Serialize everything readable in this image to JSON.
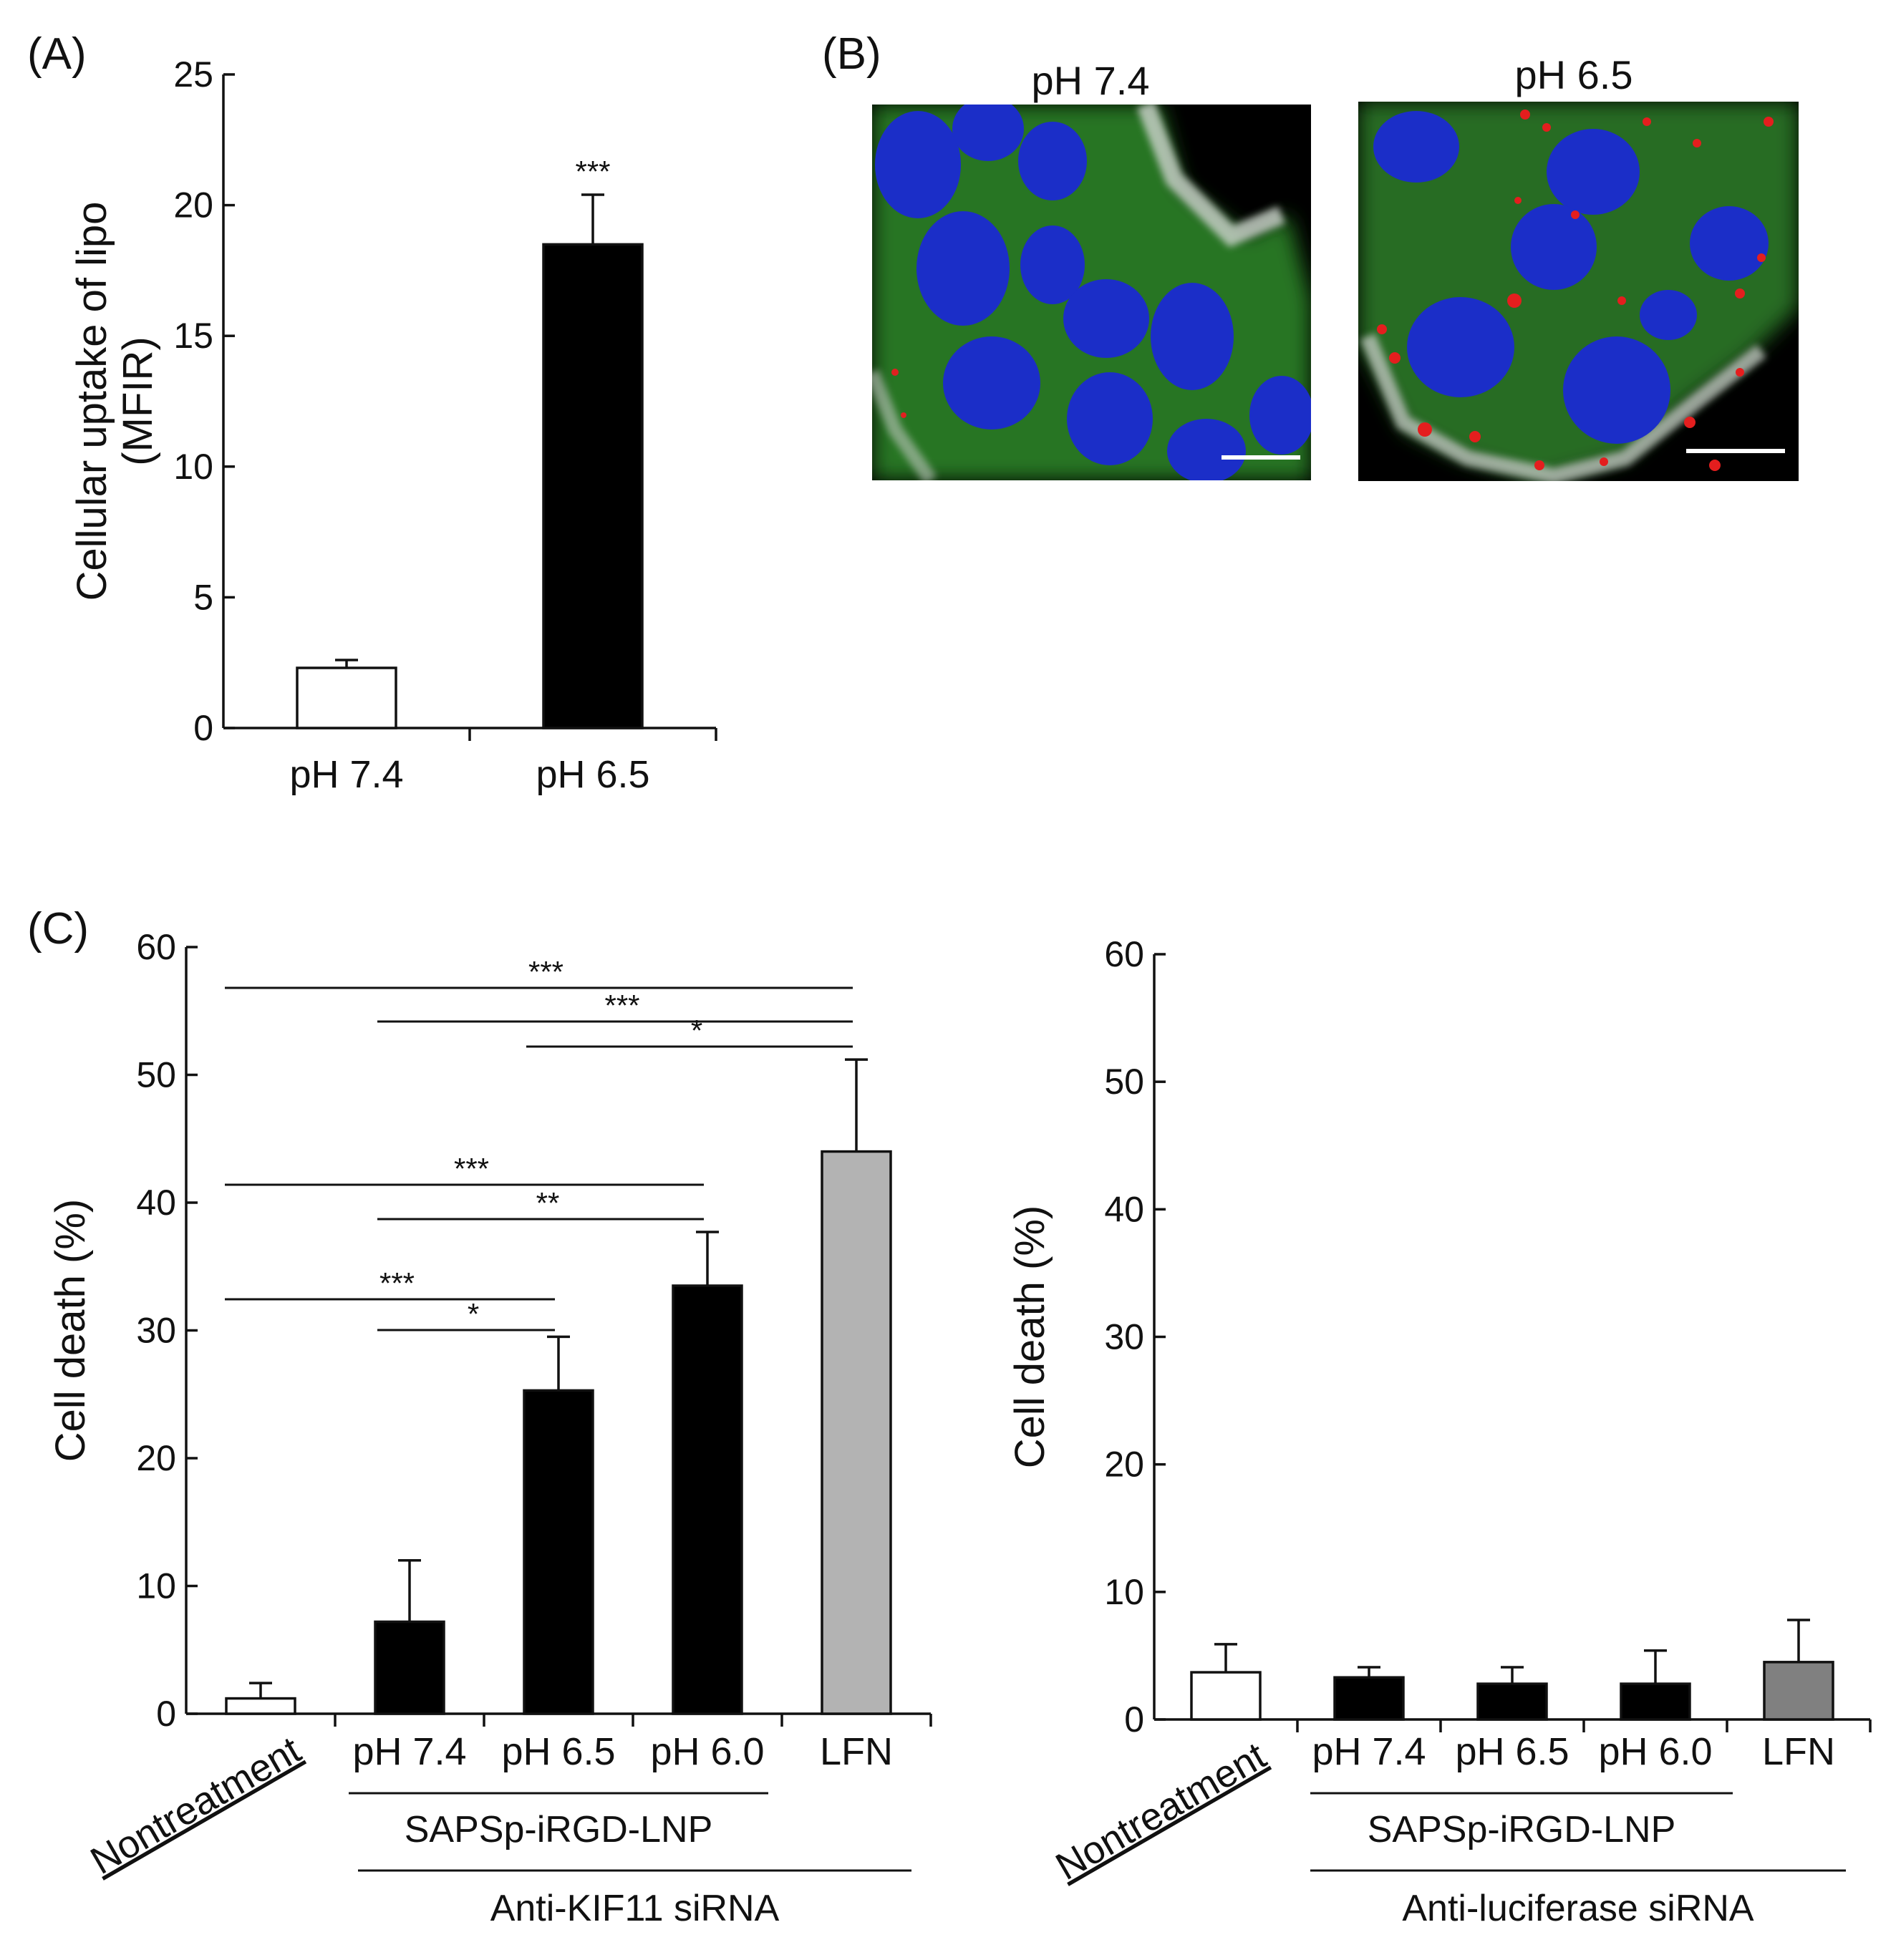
{
  "panels": {
    "a": "(A)",
    "b": "(B)",
    "c": "(C)"
  },
  "micrographs": {
    "left_title": "pH 7.4",
    "right_title": "pH 6.5"
  },
  "chart_data": [
    {
      "id": "A",
      "type": "bar",
      "ylabel": "Cellular uptake of lipo (MFIR)",
      "ylim": [
        0,
        25
      ],
      "yticks": [
        0,
        5,
        10,
        15,
        20,
        25
      ],
      "categories": [
        "pH 7.4",
        "pH 6.5"
      ],
      "values": [
        2.3,
        18.5
      ],
      "errors": [
        0.3,
        1.9
      ],
      "colors": [
        "#ffffff",
        "#000000"
      ],
      "significance": [
        {
          "label": "***",
          "bar": 1
        }
      ]
    },
    {
      "id": "C-left",
      "type": "bar",
      "ylabel": "Cell death (%)",
      "ylim": [
        0,
        60
      ],
      "yticks": [
        0,
        10,
        20,
        30,
        40,
        50,
        60
      ],
      "categories": [
        "Nontreatment",
        "pH 7.4",
        "pH 6.5",
        "pH 6.0",
        "LFN"
      ],
      "values": [
        1.2,
        7.2,
        25.3,
        33.5,
        44.0
      ],
      "errors": [
        1.2,
        4.8,
        4.2,
        4.2,
        7.2
      ],
      "colors": [
        "#ffffff",
        "#000000",
        "#000000",
        "#000000",
        "#b3b3b3"
      ],
      "group_label": "SAPSp-iRGD-LNP",
      "treatment_label": "Anti-KIF11 siRNA",
      "comparisons": [
        {
          "from": 0,
          "to": 4,
          "label": "***"
        },
        {
          "from": 1,
          "to": 4,
          "label": "***"
        },
        {
          "from": 2,
          "to": 4,
          "label": "*"
        },
        {
          "from": 0,
          "to": 3,
          "label": "***"
        },
        {
          "from": 1,
          "to": 3,
          "label": "**"
        },
        {
          "from": 0,
          "to": 2,
          "label": "***"
        },
        {
          "from": 1,
          "to": 2,
          "label": "*"
        }
      ]
    },
    {
      "id": "C-right",
      "type": "bar",
      "ylabel": "Cell death (%)",
      "ylim": [
        0,
        60
      ],
      "yticks": [
        0,
        10,
        20,
        30,
        40,
        50,
        60
      ],
      "categories": [
        "Nontreatment",
        "pH 7.4",
        "pH 6.5",
        "pH 6.0",
        "LFN"
      ],
      "values": [
        3.7,
        3.3,
        2.8,
        2.8,
        4.5
      ],
      "errors": [
        2.2,
        0.8,
        1.3,
        2.6,
        3.3
      ],
      "colors": [
        "#ffffff",
        "#000000",
        "#000000",
        "#000000",
        "#808080"
      ],
      "group_label": "SAPSp-iRGD-LNP",
      "treatment_label": "Anti-luciferase siRNA"
    }
  ]
}
